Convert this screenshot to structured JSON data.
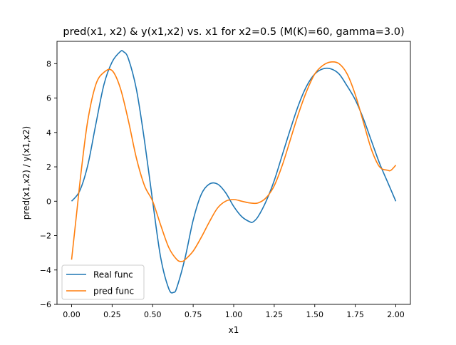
{
  "chart_data": {
    "type": "line",
    "title": "pred(x1, x2) & y(x1,x2) vs. x1 for x2=0.5 (M(K)=60, gamma=3.0)",
    "xlabel": "x1",
    "ylabel": "pred(x1,x2) / y(x1,x2)",
    "xlim": [
      -0.09,
      2.09
    ],
    "ylim": [
      -6,
      9.3
    ],
    "xticks": [
      0.0,
      0.25,
      0.5,
      0.75,
      1.0,
      1.25,
      1.5,
      1.75,
      2.0
    ],
    "xtick_labels": [
      "0.00",
      "0.25",
      "0.50",
      "0.75",
      "1.00",
      "1.25",
      "1.50",
      "1.75",
      "2.00"
    ],
    "yticks": [
      -6,
      -4,
      -2,
      0,
      2,
      4,
      6,
      8
    ],
    "ytick_labels": [
      "−6",
      "−4",
      "−2",
      "0",
      "2",
      "4",
      "6",
      "8"
    ],
    "grid": false,
    "legend_position": "lower-left",
    "series": [
      {
        "name": "Real func",
        "color": "#1f77b4",
        "x": [
          0.0,
          0.05,
          0.1,
          0.15,
          0.2,
          0.25,
          0.3,
          0.32,
          0.35,
          0.4,
          0.45,
          0.5,
          0.55,
          0.6,
          0.63,
          0.65,
          0.7,
          0.75,
          0.8,
          0.85,
          0.9,
          0.95,
          1.0,
          1.05,
          1.1,
          1.12,
          1.15,
          1.2,
          1.25,
          1.3,
          1.35,
          1.4,
          1.45,
          1.5,
          1.55,
          1.6,
          1.65,
          1.7,
          1.75,
          1.8,
          1.85,
          1.9,
          1.95,
          2.0
        ],
        "y": [
          0.0,
          0.6,
          2.1,
          4.5,
          6.8,
          8.1,
          8.7,
          8.7,
          8.3,
          6.5,
          3.5,
          0.0,
          -3.3,
          -5.1,
          -5.3,
          -5.0,
          -3.3,
          -1.1,
          0.4,
          1.0,
          1.0,
          0.5,
          -0.3,
          -0.9,
          -1.2,
          -1.2,
          -0.9,
          0.0,
          1.2,
          2.7,
          4.2,
          5.6,
          6.7,
          7.4,
          7.7,
          7.7,
          7.4,
          6.7,
          5.9,
          4.8,
          3.5,
          2.2,
          1.1,
          0.0
        ]
      },
      {
        "name": "pred func",
        "color": "#ff7f0e",
        "x": [
          0.0,
          0.03,
          0.06,
          0.1,
          0.15,
          0.2,
          0.25,
          0.3,
          0.35,
          0.4,
          0.45,
          0.5,
          0.55,
          0.6,
          0.65,
          0.68,
          0.7,
          0.75,
          0.8,
          0.85,
          0.9,
          0.95,
          1.0,
          1.05,
          1.1,
          1.15,
          1.2,
          1.25,
          1.3,
          1.35,
          1.4,
          1.45,
          1.5,
          1.55,
          1.6,
          1.65,
          1.7,
          1.75,
          1.8,
          1.85,
          1.9,
          1.95,
          1.97,
          2.0
        ],
        "y": [
          -3.4,
          -0.8,
          1.8,
          4.7,
          6.8,
          7.5,
          7.6,
          6.6,
          4.7,
          2.5,
          0.9,
          0.0,
          -1.4,
          -2.7,
          -3.4,
          -3.5,
          -3.4,
          -2.9,
          -2.1,
          -1.2,
          -0.4,
          0.0,
          0.1,
          0.0,
          -0.1,
          -0.1,
          0.2,
          0.9,
          2.1,
          3.6,
          5.1,
          6.4,
          7.4,
          7.9,
          8.1,
          8.0,
          7.4,
          6.2,
          4.6,
          3.0,
          2.0,
          1.8,
          1.8,
          2.1
        ]
      }
    ]
  }
}
